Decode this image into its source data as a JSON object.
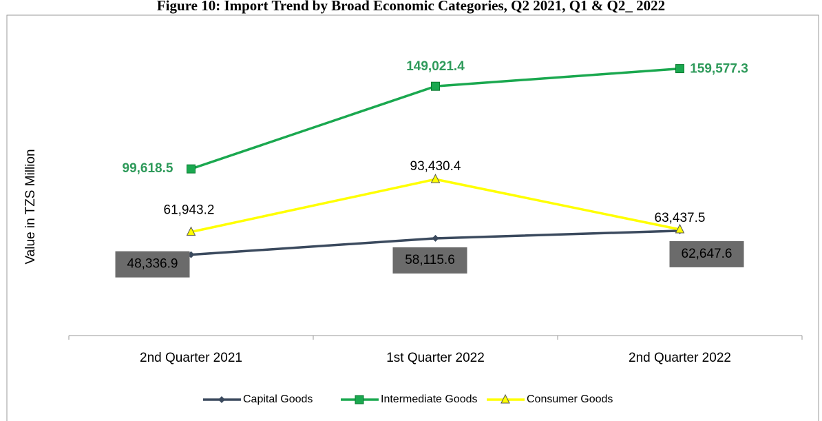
{
  "chart_data": {
    "type": "line",
    "title": "Figure 10: Import Trend by Broad Economic Categories, Q2 2021, Q1 & Q2_ 2022",
    "y_label": "Value in TZS Million",
    "categories": [
      "2nd Quarter 2021",
      "1st Quarter 2022",
      "2nd Quarter 2022"
    ],
    "ylim": [
      0,
      180000
    ],
    "series": [
      {
        "name": "Capital Goods",
        "color": "#3b4a5e",
        "marker": "diamond",
        "values": [
          48336.9,
          58115.6,
          62647.6
        ],
        "value_labels": [
          "48,336.9",
          "58,115.6",
          "62,647.6"
        ]
      },
      {
        "name": "Intermediate Goods",
        "color": "#1aa84f",
        "marker": "square",
        "values": [
          99618.5,
          149021.4,
          159577.3
        ],
        "value_labels": [
          "99,618.5",
          "149,021.4",
          "159,577.3"
        ]
      },
      {
        "name": "Consumer Goods",
        "color": "#ffff00",
        "marker": "triangle",
        "values": [
          61943.2,
          93430.4,
          63437.5
        ],
        "value_labels": [
          "61,943.2",
          "93,430.4",
          "63,437.5"
        ]
      }
    ],
    "legend": "bottom"
  }
}
